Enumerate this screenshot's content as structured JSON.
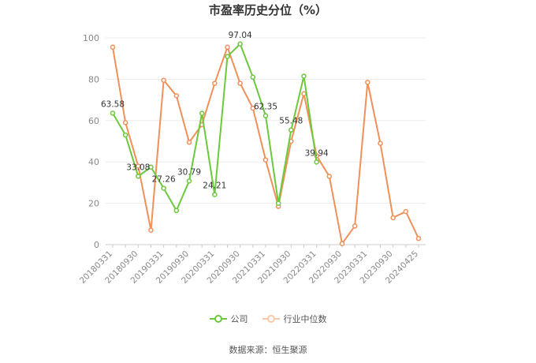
{
  "chart_data": {
    "type": "line",
    "title": "市盈率历史分位（%）",
    "ylim": [
      0,
      100
    ],
    "yticks": [
      0,
      20,
      40,
      60,
      80,
      100
    ],
    "grid": true,
    "legend_position": "bottom",
    "x_labels": [
      "20180331",
      "20180930",
      "20190331",
      "20190930",
      "20200331",
      "20200930",
      "20210331",
      "20210930",
      "20220331",
      "20220930",
      "20230331",
      "20230930",
      "20240425"
    ],
    "x": [
      "20180331",
      "20180630",
      "20180930",
      "20181231",
      "20190331",
      "20190630",
      "20190930",
      "20191231",
      "20200331",
      "20200630",
      "20200930",
      "20201231",
      "20210331",
      "20210630",
      "20210930",
      "20211231",
      "20220331",
      "20220630",
      "20220930",
      "20221231",
      "20230331",
      "20230630",
      "20230930",
      "20231231",
      "20240425"
    ],
    "series": [
      {
        "name": "公司",
        "color": "#6cc83c",
        "values": [
          63.58,
          53,
          33.08,
          37.5,
          27.26,
          16.5,
          30.79,
          63.5,
          24.21,
          91,
          97.04,
          81,
          62.35,
          20,
          55.48,
          81.5,
          39.94,
          null,
          null,
          null,
          null,
          null,
          null,
          null,
          null
        ],
        "labels": {
          "0": "63.58",
          "2": "33.08",
          "4": "27.26",
          "6": "30.79",
          "8": "24.21",
          "10": "97.04",
          "12": "62.35",
          "14": "55.48",
          "16": "39.94"
        }
      },
      {
        "name": "行业中位数",
        "color": "#f0905a",
        "values": [
          95.5,
          59,
          38,
          7,
          79.5,
          72,
          49.5,
          58,
          78,
          95.5,
          78,
          66,
          41,
          18.5,
          50,
          73,
          43,
          33,
          0.5,
          9,
          78.5,
          49,
          13,
          16,
          3
        ]
      }
    ]
  },
  "source": "数据来源：恒生聚源"
}
